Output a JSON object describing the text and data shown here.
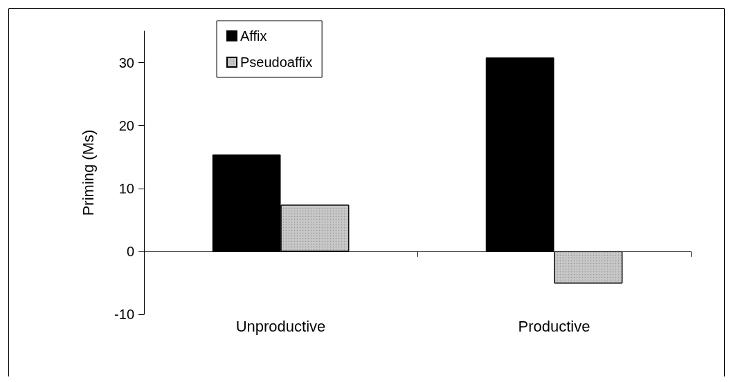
{
  "chart_data": {
    "type": "bar",
    "ylabel": "Priming (Ms)",
    "categories": [
      "Unproductive",
      "Productive"
    ],
    "series": [
      {
        "name": "Affix",
        "color": "#000000",
        "values": [
          15.4,
          30.8
        ]
      },
      {
        "name": "Pseudoaffix",
        "color": "#c8c8c8",
        "values": [
          7.4,
          -5.1
        ]
      }
    ],
    "ylim": [
      -10,
      35
    ],
    "yticks": [
      -10,
      0,
      10,
      20,
      30
    ],
    "legend": "top left"
  }
}
